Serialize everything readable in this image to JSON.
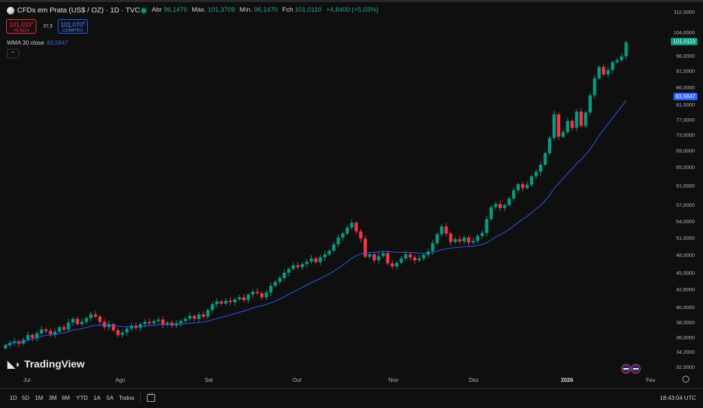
{
  "header": {
    "symbol_title": "CFDs em Prata (US$ / OZ) · 1D · TVC",
    "open_label": "Abr",
    "open_value": "96,1470",
    "high_label": "Máx.",
    "high_value": "101,3709",
    "low_label": "Mín.",
    "low_value": "96,1470",
    "close_label": "Fch",
    "close_value": "101,0110",
    "change_value": "+4,8400 (+5,03%)"
  },
  "trade": {
    "sell_price": "101,033",
    "sell_sup": "3",
    "sell_label": "VENDA",
    "spread": "37,5",
    "buy_price": "101,070",
    "buy_sup": "8",
    "buy_label": "COMPRA"
  },
  "indicator": {
    "name": "WMA 30 close",
    "value": "83,5847"
  },
  "price_axis": {
    "labels": [
      "112,0000",
      "104,0000",
      "96,0000",
      "91,0000",
      "86,0000",
      "81,0000",
      "77,0000",
      "73,0000",
      "69,0000",
      "65,0000",
      "61,0000",
      "57,0000",
      "54,0000",
      "51,0000",
      "48,0000",
      "45,0000",
      "42,5000",
      "40,0000",
      "38,0000",
      "36,0000",
      "34,2000",
      "32,5000"
    ],
    "last_price_tag": "101,0110",
    "wma_tag": "83,5847"
  },
  "time_axis": {
    "labels": [
      "Jul",
      "Ago",
      "Set",
      "Out",
      "Nov",
      "Dez",
      "2026",
      "Fev"
    ]
  },
  "branding": {
    "logo_text": "TradingView"
  },
  "bottom_bar": {
    "timeframes": [
      "1D",
      "5D",
      "1M",
      "3M",
      "6M",
      "YTD",
      "1A",
      "5A",
      "Todos"
    ],
    "clock": "18:43:04 UTC"
  },
  "colors": {
    "up": "#089981",
    "down": "#f23645",
    "wma": "#2962ff",
    "background": "#0f0f0f"
  },
  "chart_data": {
    "type": "candlestick",
    "y_scale": "log",
    "ylim": [
      32.5,
      112
    ],
    "indicator": "WMA 30 close",
    "x_axis_labels": [
      "Jul",
      "Ago",
      "Set",
      "Out",
      "Nov",
      "Dez",
      "2026",
      "Fev"
    ],
    "close_series_approx": [
      35.5,
      35.8,
      36.0,
      35.7,
      36.2,
      36.8,
      36.4,
      37.0,
      37.5,
      37.3,
      36.9,
      37.2,
      37.8,
      37.5,
      38.4,
      38.9,
      38.2,
      38.5,
      39.0,
      39.5,
      39.2,
      38.5,
      37.8,
      38.2,
      37.4,
      36.8,
      37.1,
      37.6,
      38.0,
      37.7,
      38.2,
      38.5,
      38.3,
      38.6,
      38.8,
      38.1,
      38.4,
      38.0,
      38.3,
      38.6,
      38.9,
      39.3,
      38.9,
      39.5,
      39.2,
      40.1,
      40.9,
      41.3,
      41.0,
      41.4,
      41.2,
      41.6,
      41.9,
      41.5,
      42.3,
      42.7,
      42.5,
      41.9,
      42.6,
      43.6,
      44.2,
      44.8,
      45.6,
      46.2,
      46.8,
      46.5,
      47.0,
      47.4,
      47.9,
      47.3,
      48.1,
      48.6,
      49.2,
      50.3,
      51.5,
      52.2,
      53.3,
      54.2,
      52.6,
      51.3,
      48.2,
      48.6,
      47.6,
      48.3,
      48.8,
      47.1,
      46.6,
      47.2,
      47.9,
      48.6,
      48.1,
      47.6,
      47.9,
      48.5,
      49.1,
      50.5,
      52.1,
      53.5,
      52.2,
      50.7,
      51.2,
      50.8,
      51.5,
      50.6,
      50.9,
      51.8,
      52.3,
      54.9,
      57.2,
      57.8,
      57.0,
      57.6,
      58.9,
      60.6,
      61.9,
      61.1,
      61.8,
      63.6,
      64.6,
      66.2,
      68.9,
      72.6,
      78.8,
      72.9,
      74.1,
      77.0,
      75.2,
      79.5,
      75.7,
      79.3,
      84.1,
      89.2,
      92.8,
      90.4,
      91.8,
      94.3,
      95.0,
      96.2,
      101.0
    ],
    "last_close": 101.011,
    "wma_last": 83.5847
  }
}
